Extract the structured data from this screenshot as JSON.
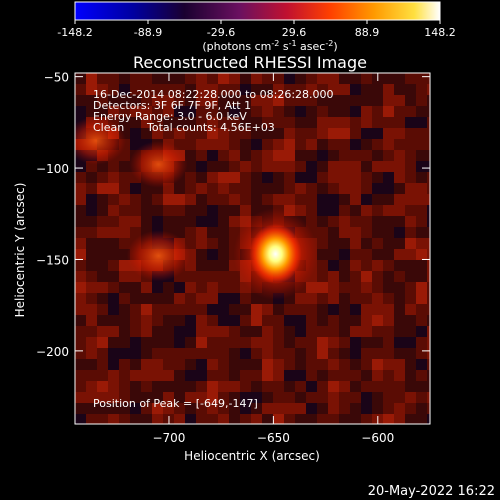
{
  "colors": {
    "background": "#000000",
    "foreground": "#ffffff"
  },
  "colorbar": {
    "ticks": [
      "-148.2",
      "-88.9",
      "-29.6",
      "29.6",
      "88.9",
      "148.2"
    ],
    "units_prefix": "(photons cm",
    "units_exp1": "-2",
    "units_mid": " s",
    "units_exp2": "-1",
    "units_mid2": " asec",
    "units_exp3": "-2",
    "units_suffix": ")",
    "stops": [
      "#0000ff",
      "#000000",
      "#2a0050",
      "#8a1a6a",
      "#ff2000",
      "#ff9000",
      "#ffff40",
      "#ffffff"
    ]
  },
  "annotations": {
    "time_range": "16-Dec-2014 08:22:28.000 to 08:26:28.000",
    "detectors": "Detectors: 3F 6F 7F 9F, Att 1",
    "energy": "Energy Range: 3.0 - 6.0 keV",
    "algorithm": "Clean",
    "counts": "Total counts: 4.56E+03",
    "peak": "Position of Peak = [-649,-147]"
  },
  "footer": {
    "date": "20-May-2022 16:22"
  },
  "chart_data": {
    "type": "heatmap",
    "title": "Reconstructed RHESSI Image",
    "xlabel": "Heliocentric X (arcsec)",
    "ylabel": "Heliocentric Y (arcsec)",
    "xlim": [
      -745,
      -575
    ],
    "ylim": [
      -240,
      -48
    ],
    "x_ticks": [
      -700,
      -650,
      -600
    ],
    "y_ticks": [
      -50,
      -100,
      -150,
      -200
    ],
    "peak": {
      "x": -649,
      "y": -147,
      "value": 148.2
    },
    "secondary_sources": [
      {
        "x": -705,
        "y": -148,
        "rel_intensity": 0.55
      },
      {
        "x": -705,
        "y": -98,
        "rel_intensity": 0.4
      },
      {
        "x": -735,
        "y": -85,
        "rel_intensity": 0.45
      }
    ]
  }
}
